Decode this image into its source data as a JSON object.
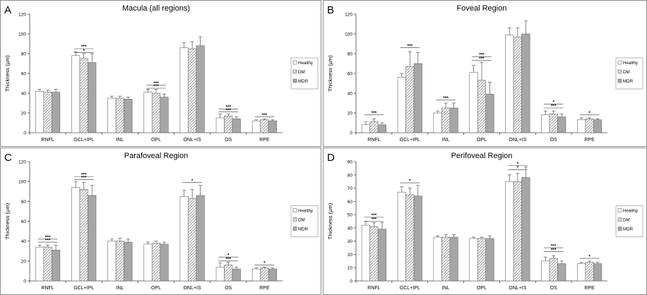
{
  "figure": {
    "legend_labels": [
      "Healthy",
      "DM",
      "MDR"
    ]
  },
  "chart_data": [
    {
      "panel_letter": "A",
      "type": "bar",
      "title": "Macula (all regions)",
      "ylabel": "Thickness (µm)",
      "xlabel": "",
      "ylim": [
        0,
        120
      ],
      "yticks": [
        0,
        20,
        40,
        60,
        80,
        100,
        120
      ],
      "categories": [
        "RNFL",
        "GCL+IPL",
        "INL",
        "OPL",
        "ONL+IS",
        "OS",
        "RPE"
      ],
      "legend": "right",
      "grid": false,
      "series": [
        {
          "name": "Healthy",
          "values": [
            42,
            78,
            35,
            41,
            86,
            15,
            12
          ],
          "errors": [
            2,
            4,
            2,
            3,
            5,
            4,
            1
          ]
        },
        {
          "name": "DM",
          "values": [
            41,
            75,
            35,
            40,
            85,
            17,
            13
          ],
          "errors": [
            2,
            5,
            2,
            4,
            7,
            2,
            1
          ]
        },
        {
          "name": "MDR",
          "values": [
            41,
            71,
            34,
            36,
            88,
            14,
            12
          ],
          "errors": [
            3,
            9,
            2,
            3,
            9,
            2,
            1
          ]
        }
      ],
      "annotations": [
        {
          "text": "***",
          "category": 1,
          "level": 85
        },
        {
          "text": "*",
          "category": 1,
          "level": 81
        },
        {
          "text": "***",
          "category": 3,
          "level": 48
        },
        {
          "text": "***",
          "category": 3,
          "level": 45
        },
        {
          "text": "***",
          "category": 5,
          "level": 24
        },
        {
          "text": "***",
          "category": 5,
          "level": 21
        },
        {
          "text": "***",
          "category": 6,
          "level": 16
        }
      ]
    },
    {
      "panel_letter": "B",
      "type": "bar",
      "title": "Foveal Region",
      "ylabel": "Thickness (µm)",
      "xlabel": "",
      "ylim": [
        0,
        120
      ],
      "yticks": [
        0,
        20,
        40,
        60,
        80,
        100,
        120
      ],
      "categories": [
        "RNFL",
        "GCL+IPL",
        "INL",
        "OPL",
        "ONL+IS",
        "OS",
        "RPE"
      ],
      "legend": "right",
      "grid": false,
      "series": [
        {
          "name": "Healthy",
          "values": [
            8,
            56,
            20,
            61,
            99,
            18,
            13
          ],
          "errors": [
            3,
            4,
            2,
            7,
            7,
            4,
            2
          ]
        },
        {
          "name": "DM",
          "values": [
            11,
            67,
            25,
            53,
            97,
            19,
            14
          ],
          "errors": [
            3,
            15,
            5,
            18,
            9,
            3,
            1
          ]
        },
        {
          "name": "MDR",
          "values": [
            8,
            70,
            25,
            39,
            100,
            16,
            13
          ],
          "errors": [
            2,
            11,
            5,
            12,
            13,
            3,
            1
          ]
        }
      ],
      "annotations": [
        {
          "text": "***",
          "category": 0,
          "level": 18
        },
        {
          "text": "***",
          "category": 1,
          "level": 86
        },
        {
          "text": "***",
          "category": 2,
          "level": 33
        },
        {
          "text": "***",
          "category": 3,
          "level": 77
        },
        {
          "text": "***",
          "category": 3,
          "level": 73
        },
        {
          "text": "*",
          "category": 5,
          "level": 29
        },
        {
          "text": "***",
          "category": 5,
          "level": 25
        },
        {
          "text": "*",
          "category": 6,
          "level": 18
        }
      ]
    },
    {
      "panel_letter": "C",
      "type": "bar",
      "title": "Parafoveal Region",
      "ylabel": "Thickness (µm)",
      "xlabel": "",
      "ylim": [
        0,
        120
      ],
      "yticks": [
        0,
        20,
        40,
        60,
        80,
        100,
        120
      ],
      "categories": [
        "RNFL",
        "GCL+IPL",
        "INL",
        "OPL",
        "ONL+IS",
        "OS",
        "RPE"
      ],
      "legend": "right",
      "grid": false,
      "series": [
        {
          "name": "Healthy",
          "values": [
            34,
            94,
            40,
            37,
            85,
            14,
            12
          ],
          "errors": [
            2,
            6,
            2,
            2,
            6,
            4,
            1
          ]
        },
        {
          "name": "DM",
          "values": [
            34,
            92,
            40,
            38,
            83,
            16,
            13
          ],
          "errors": [
            2,
            7,
            3,
            2,
            9,
            3,
            1
          ]
        },
        {
          "name": "MDR",
          "values": [
            31,
            86,
            39,
            37,
            86,
            12,
            12
          ],
          "errors": [
            5,
            10,
            3,
            2,
            10,
            2,
            1
          ]
        }
      ],
      "annotations": [
        {
          "text": "***",
          "category": 0,
          "level": 42
        },
        {
          "text": "***",
          "category": 0,
          "level": 39
        },
        {
          "text": "***",
          "category": 1,
          "level": 105
        },
        {
          "text": "***",
          "category": 1,
          "level": 102
        },
        {
          "text": "*",
          "category": 4,
          "level": 99
        },
        {
          "text": "*",
          "category": 5,
          "level": 24
        },
        {
          "text": "***",
          "category": 5,
          "level": 20
        },
        {
          "text": "*",
          "category": 6,
          "level": 16
        }
      ]
    },
    {
      "panel_letter": "D",
      "type": "bar",
      "title": "Perifoveal Region",
      "ylabel": "Thickness (µm)",
      "xlabel": "",
      "ylim": [
        0,
        90
      ],
      "yticks": [
        0,
        10,
        20,
        30,
        40,
        50,
        60,
        70,
        80,
        90
      ],
      "categories": [
        "RNFL",
        "GCL+IPL",
        "INL",
        "OPL",
        "ONL+IS",
        "OS",
        "RPE"
      ],
      "legend": "right",
      "grid": false,
      "series": [
        {
          "name": "Healthy",
          "values": [
            42,
            67,
            33,
            32,
            75,
            15,
            13
          ],
          "errors": [
            3,
            4,
            1,
            1,
            5,
            3,
            1
          ]
        },
        {
          "name": "DM",
          "values": [
            41,
            65,
            33,
            32,
            75,
            17,
            14
          ],
          "errors": [
            3,
            5,
            2,
            1,
            6,
            2,
            1
          ]
        },
        {
          "name": "MDR",
          "values": [
            39,
            64,
            33,
            32,
            78,
            13,
            13
          ],
          "errors": [
            5,
            8,
            2,
            2,
            8,
            2,
            1
          ]
        }
      ],
      "annotations": [
        {
          "text": "***",
          "category": 0,
          "level": 48
        },
        {
          "text": "***",
          "category": 0,
          "level": 45
        },
        {
          "text": "*",
          "category": 1,
          "level": 74
        },
        {
          "text": "*",
          "category": 4,
          "level": 87
        },
        {
          "text": "*",
          "category": 4,
          "level": 84
        },
        {
          "text": "***",
          "category": 5,
          "level": 25
        },
        {
          "text": "***",
          "category": 5,
          "level": 22
        },
        {
          "text": "*",
          "category": 6,
          "level": 17
        }
      ]
    }
  ]
}
